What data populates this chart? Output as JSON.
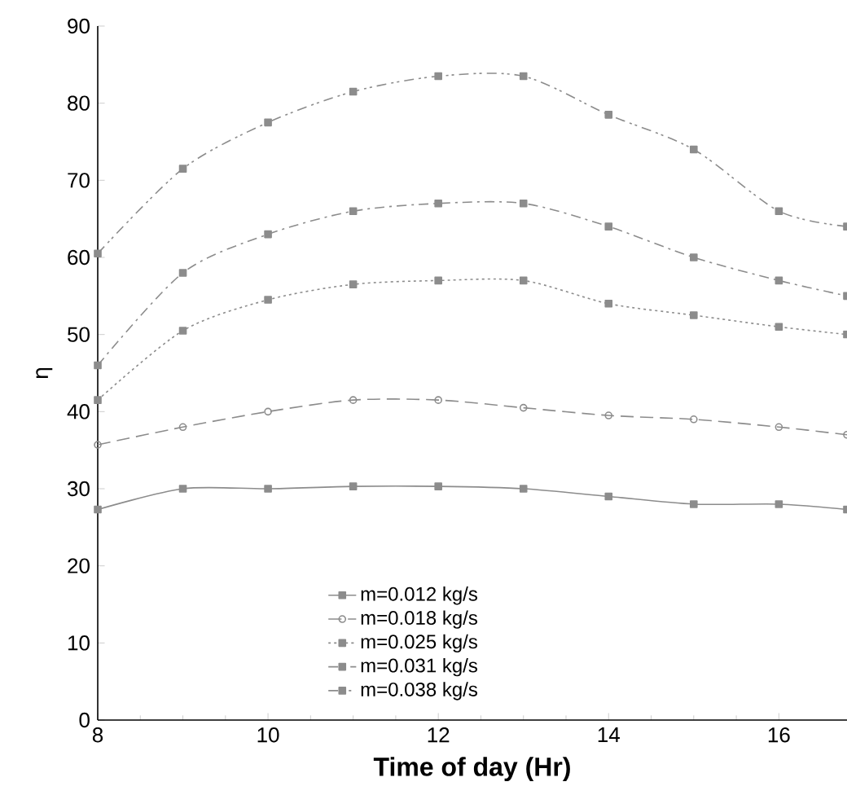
{
  "chart_data": {
    "type": "line",
    "xlabel": "Time of day (Hr)",
    "ylabel": "η",
    "xlim": [
      8,
      16.8
    ],
    "ylim": [
      0,
      90
    ],
    "xticks": [
      8,
      10,
      12,
      14,
      16
    ],
    "yticks": [
      0,
      10,
      20,
      30,
      40,
      50,
      60,
      70,
      80,
      90
    ],
    "x": [
      8,
      9,
      10,
      11,
      12,
      13,
      14,
      15,
      16,
      16.8
    ],
    "grid": false,
    "legend": "bottom",
    "series": [
      {
        "name": "m=0.012 kg/s",
        "color": "#8c8c8c",
        "line_style": "solid",
        "marker": "square",
        "values": [
          27.3,
          30,
          30,
          30.3,
          30.3,
          30,
          29,
          28,
          28,
          27.3
        ]
      },
      {
        "name": "m=0.018 kg/s",
        "color": "#8c8c8c",
        "line_style": "dashed",
        "marker": "circle",
        "values": [
          35.7,
          38,
          40,
          41.5,
          41.5,
          40.5,
          39.5,
          39,
          38,
          37
        ]
      },
      {
        "name": "m=0.025 kg/s",
        "color": "#8c8c8c",
        "line_style": "dotted",
        "marker": "square",
        "values": [
          41.5,
          50.5,
          54.5,
          56.5,
          57,
          57,
          54,
          52.5,
          51,
          50
        ]
      },
      {
        "name": "m=0.031 kg/s",
        "color": "#8c8c8c",
        "line_style": "dashdot",
        "marker": "square",
        "values": [
          46,
          58,
          63,
          66,
          67,
          67,
          64,
          60,
          57,
          55
        ]
      },
      {
        "name": "m=0.038 kg/s",
        "color": "#8c8c8c",
        "line_style": "dashdotdot",
        "marker": "square",
        "values": [
          60.5,
          71.5,
          77.5,
          81.5,
          83.5,
          83.5,
          78.5,
          74,
          66,
          64
        ]
      }
    ]
  }
}
